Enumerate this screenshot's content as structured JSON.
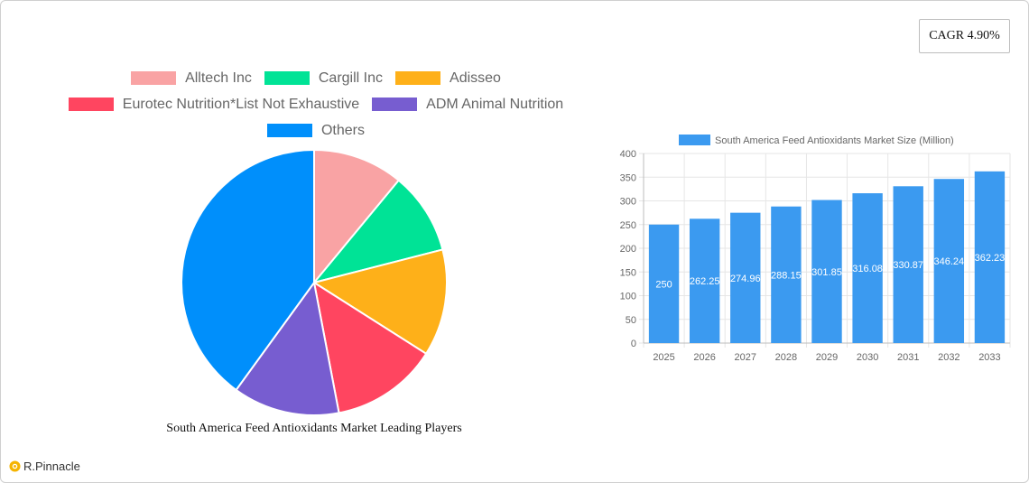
{
  "cagr_label": "CAGR 4.90%",
  "brand": "R.Pinnacle",
  "pie_title": "South America Feed Antioxidants Market Leading Players",
  "chart_data": [
    {
      "type": "pie",
      "title": "South America Feed Antioxidants Market Leading Players",
      "legend_position": "top",
      "slices": [
        {
          "label": "Alltech Inc",
          "value": 11,
          "color": "#f9a3a4"
        },
        {
          "label": "Cargill Inc",
          "value": 10,
          "color": "#00e396"
        },
        {
          "label": "Adisseo",
          "value": 13,
          "color": "#feb019"
        },
        {
          "label": "Eurotec Nutrition*List Not Exhaustive",
          "value": 13,
          "color": "#ff4560"
        },
        {
          "label": "ADM Animal Nutrition",
          "value": 13,
          "color": "#775dd0"
        },
        {
          "label": "Others",
          "value": 40,
          "color": "#008ffb"
        }
      ]
    },
    {
      "type": "bar",
      "categories": [
        "2025",
        "2026",
        "2027",
        "2028",
        "2029",
        "2030",
        "2031",
        "2032",
        "2033"
      ],
      "series": [
        {
          "name": "South America Feed Antioxidants Market Size (Million)",
          "values": [
            250,
            262.25,
            274.96,
            288.15,
            301.85,
            316.08,
            330.87,
            346.24,
            362.23
          ],
          "color": "#3b9af0"
        }
      ],
      "data_labels": [
        "250",
        "262.25",
        "274.96",
        "288.15",
        "301.85",
        "316.08",
        "330.87",
        "346.24",
        "362.23"
      ],
      "ylim": [
        0,
        400
      ],
      "yticks": [
        "0",
        "50",
        "100",
        "150",
        "200",
        "250",
        "300",
        "350",
        "400"
      ],
      "grid": true,
      "legend_position": "top"
    }
  ]
}
